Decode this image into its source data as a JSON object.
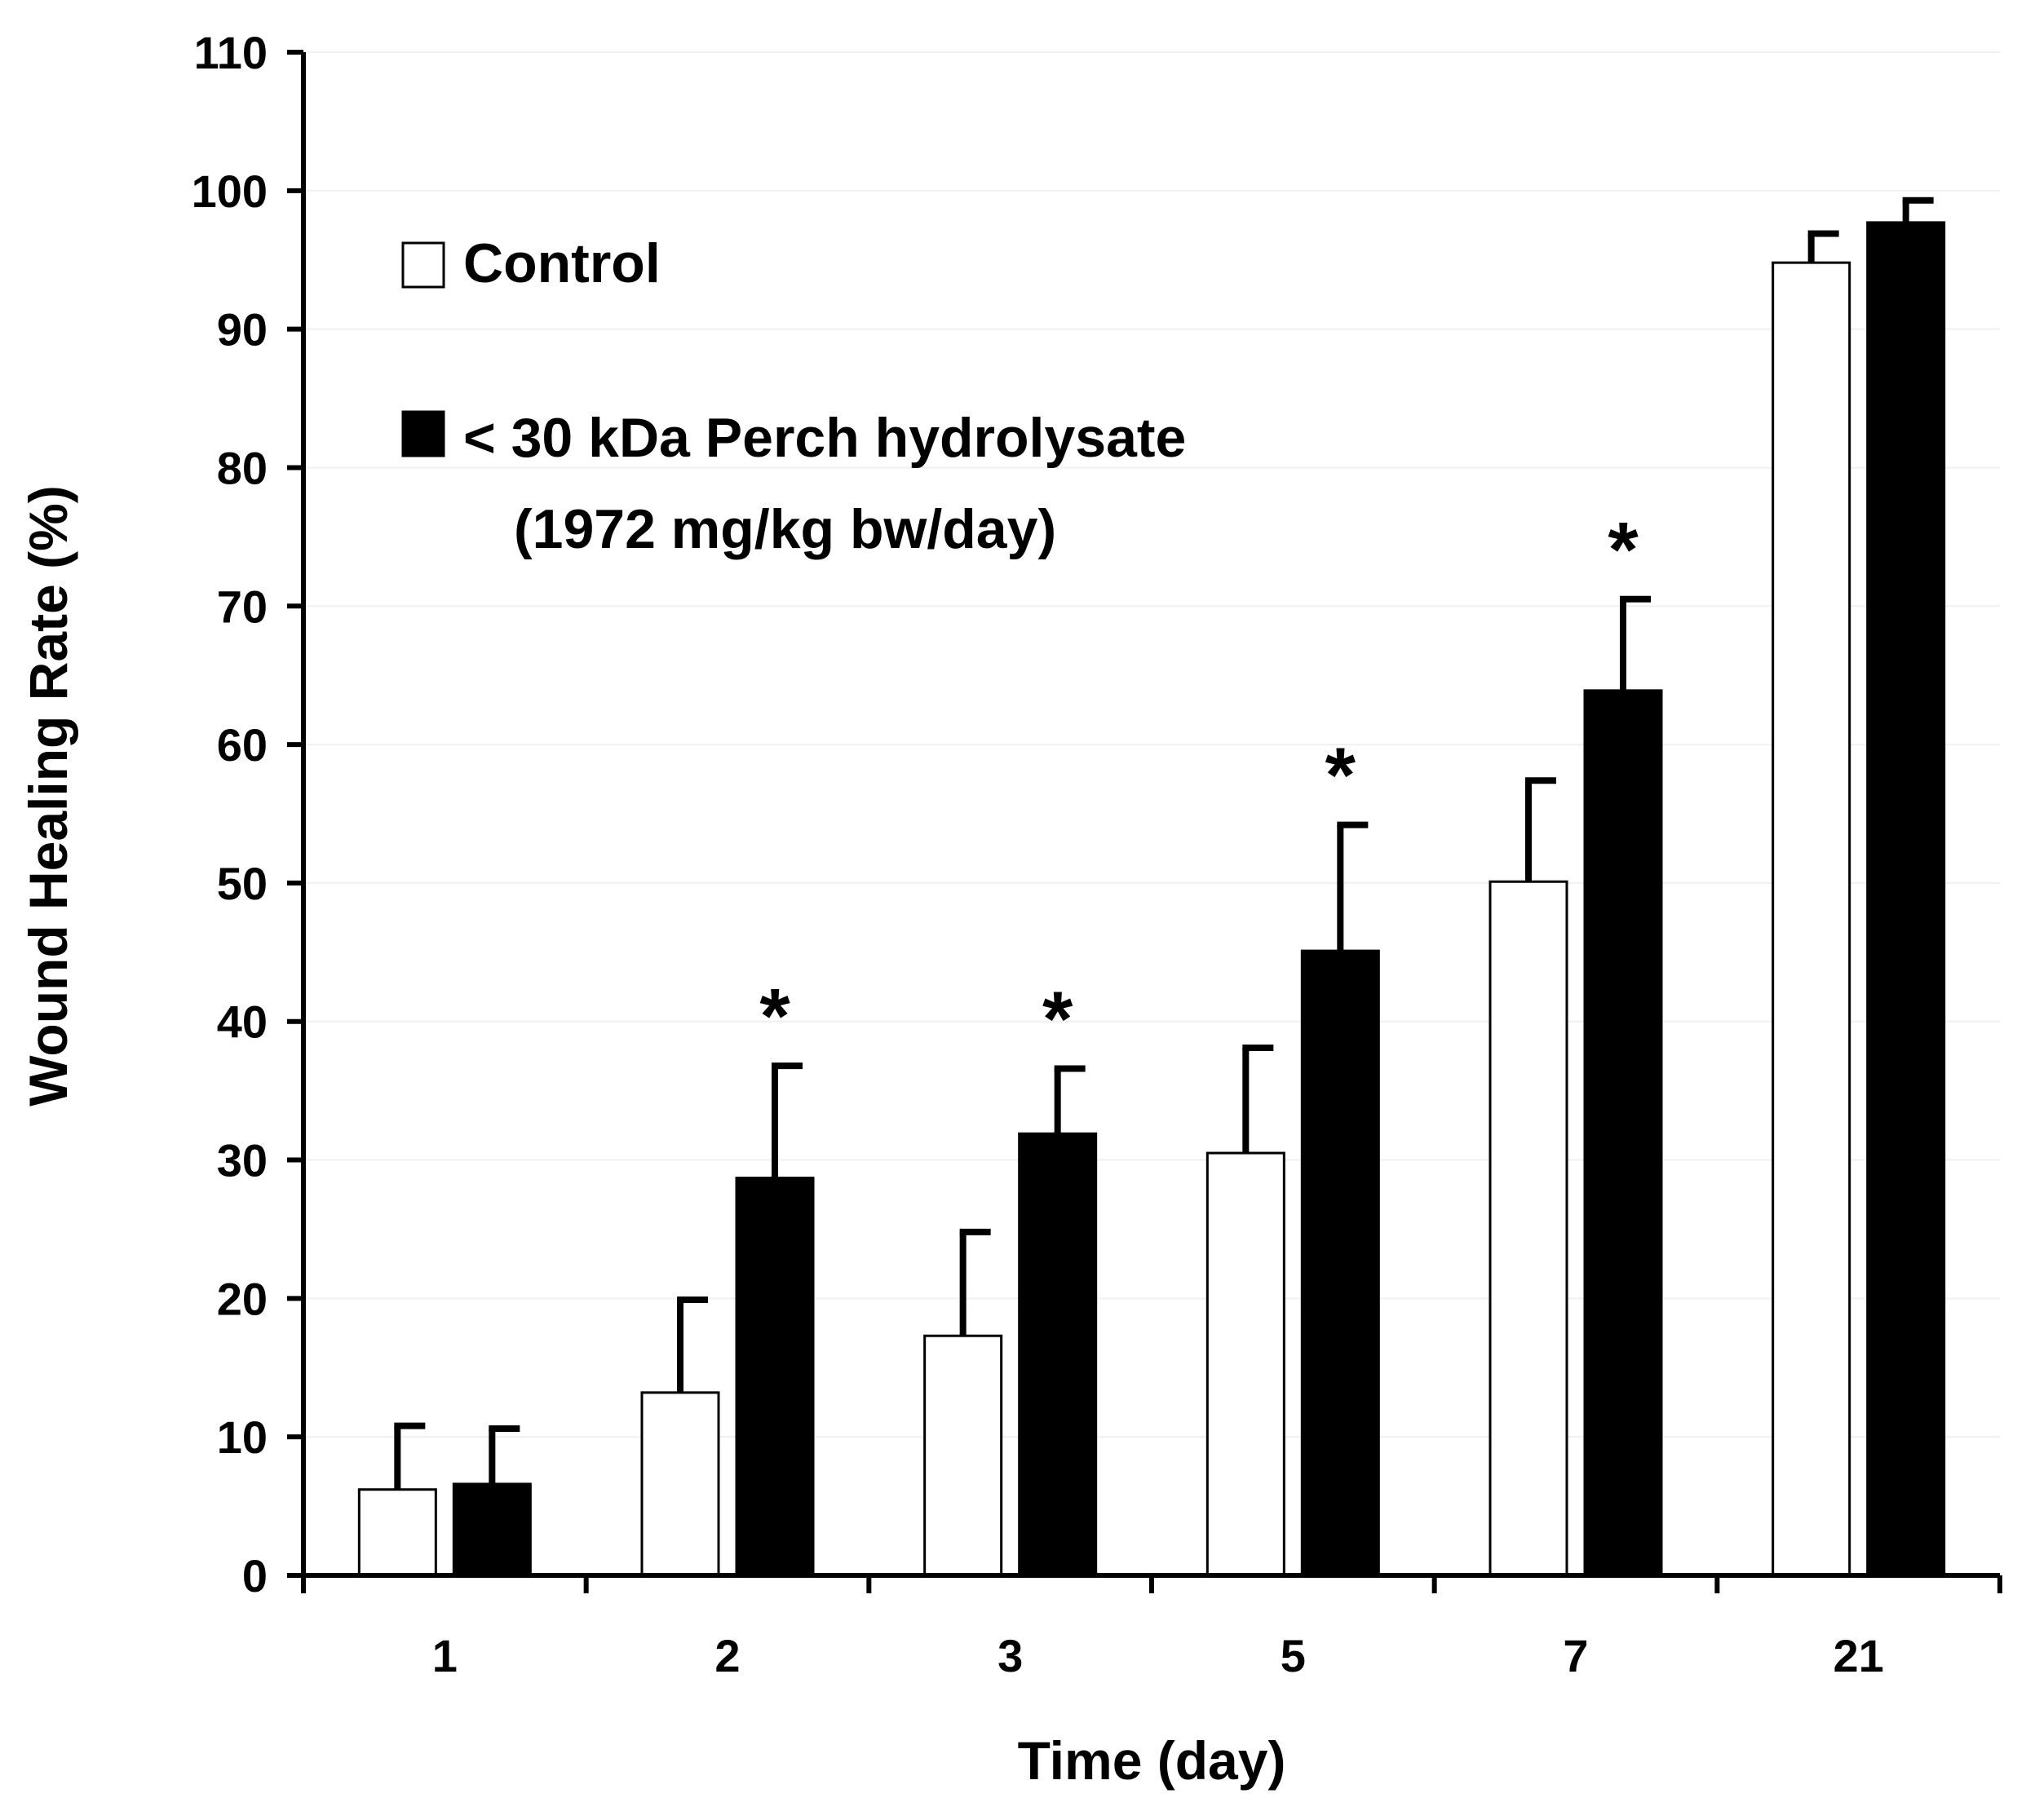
{
  "chart_data": {
    "type": "bar",
    "title": "",
    "xlabel": "Time (day)",
    "ylabel": "Wound Healing Rate (%)",
    "ylim": [
      0,
      110
    ],
    "yticks": [
      "0",
      "10",
      "20",
      "30",
      "40",
      "50",
      "60",
      "70",
      "80",
      "90",
      "100",
      "110"
    ],
    "categories": [
      "1",
      "2",
      "3",
      "5",
      "7",
      "21"
    ],
    "series": [
      {
        "name": "Control",
        "values": [
          6.2,
          13.2,
          17.3,
          30.5,
          50.1,
          94.8
        ],
        "errors": [
          4.6,
          6.7,
          7.5,
          7.6,
          7.3,
          2.1
        ],
        "fill": "#ffffff"
      },
      {
        "name": "< 30 kDa Perch hydrolysate",
        "name_line2": "(1972 mg/kg bw/day)",
        "values": [
          6.6,
          28.7,
          31.9,
          45.1,
          63.9,
          97.7
        ],
        "errors": [
          4.0,
          8.1,
          4.7,
          9.1,
          6.6,
          1.6
        ],
        "fill": "#000000"
      }
    ],
    "significance": [
      "",
      "*",
      "*",
      "*",
      "*",
      ""
    ],
    "grid": false,
    "legend_position": "top-left"
  }
}
